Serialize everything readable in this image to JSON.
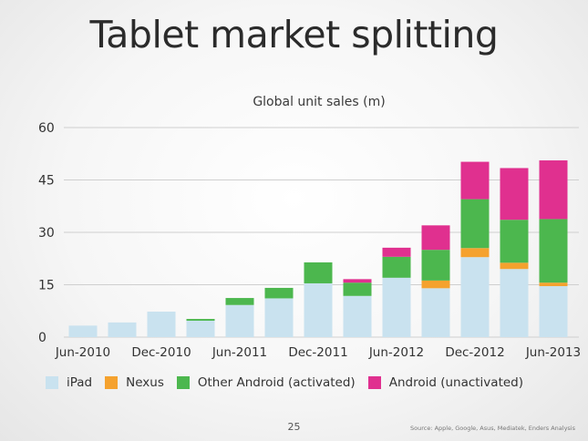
{
  "slide": {
    "title": "Tablet market splitting",
    "page_number": "25",
    "source": "Source: Apple, Google, Asus, Mediatek, Enders Analysis"
  },
  "colors": {
    "ipad": "#c9e2ef",
    "nexus": "#f5a22e",
    "other_android": "#4cb74e",
    "android_unactivated": "#e0308f",
    "grid": "#cfcfcf",
    "axis_text": "#333333"
  },
  "chart_data": {
    "type": "bar",
    "stacked": true,
    "title": "Global unit sales (m)",
    "xlabel": "",
    "ylabel": "",
    "ylim": [
      0,
      60
    ],
    "yticks": [
      0,
      15,
      30,
      45,
      60
    ],
    "grid": true,
    "legend_position": "bottom",
    "categories": [
      "Jun-2010",
      "Sep-2010",
      "Dec-2010",
      "Mar-2011",
      "Jun-2011",
      "Sep-2011",
      "Dec-2011",
      "Mar-2012",
      "Jun-2012",
      "Sep-2012",
      "Dec-2012",
      "Mar-2013",
      "Jun-2013"
    ],
    "tick_labels": [
      "Jun-2010",
      "Dec-2010",
      "Jun-2011",
      "Dec-2011",
      "Jun-2012",
      "Dec-2012",
      "Jun-2013"
    ],
    "series": [
      {
        "name": "iPad",
        "color": "#c9e2ef",
        "values": [
          3.3,
          4.2,
          7.3,
          4.7,
          9.2,
          11.1,
          15.4,
          11.8,
          17.0,
          14.0,
          22.9,
          19.5,
          14.6
        ]
      },
      {
        "name": "Nexus",
        "color": "#f5a22e",
        "values": [
          0,
          0,
          0,
          0,
          0,
          0,
          0,
          0,
          0,
          2.2,
          2.6,
          1.8,
          1.0
        ]
      },
      {
        "name": "Other Android (activated)",
        "color": "#4cb74e",
        "values": [
          0,
          0,
          0,
          0.5,
          2.0,
          3.0,
          6.0,
          3.8,
          6.0,
          8.8,
          14.0,
          12.3,
          18.2
        ]
      },
      {
        "name": "Android (unactivated)",
        "color": "#e0308f",
        "values": [
          0,
          0,
          0,
          0,
          0,
          0,
          0,
          1.0,
          2.6,
          7.0,
          10.7,
          14.8,
          16.8
        ]
      }
    ]
  }
}
